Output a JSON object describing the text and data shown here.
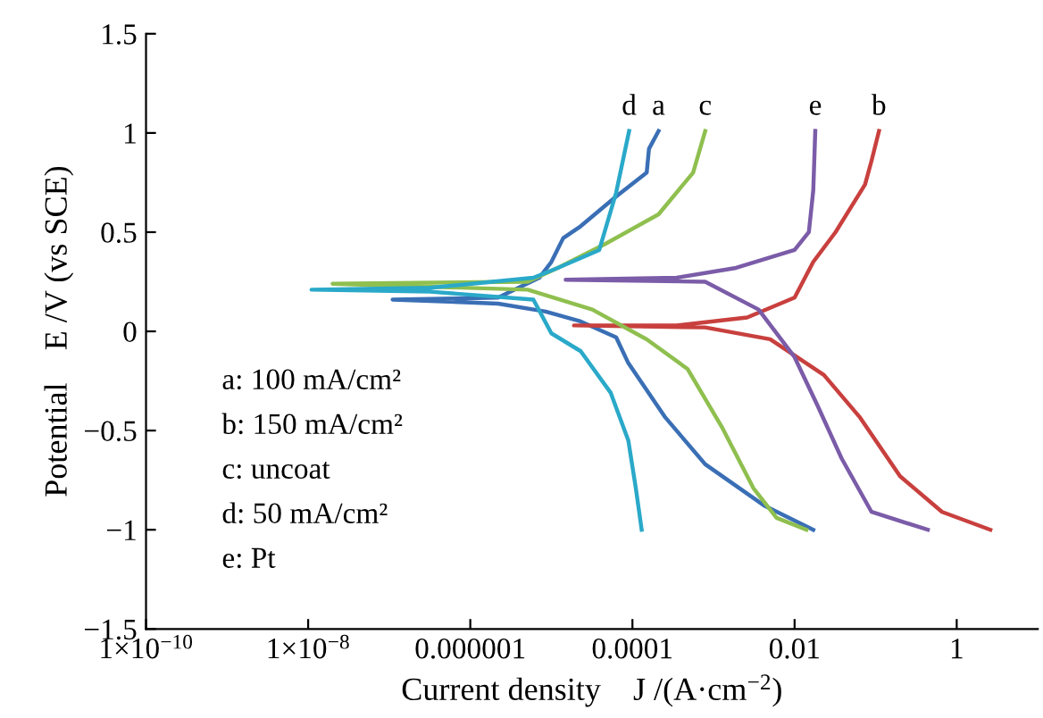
{
  "chart_data": {
    "type": "line",
    "xlabel": "Current density    J /(A·cm$^{−2}$)",
    "ylabel": "Potential    E /V (vs SCE)",
    "log": "x",
    "xlim": [
      1e-10,
      10
    ],
    "ylim": [
      -1.5,
      1.5
    ],
    "xticks": [
      {
        "value": 1e-10,
        "label": "1×10$^{−10}$"
      },
      {
        "value": 1e-08,
        "label": "1×10$^{−8}$"
      },
      {
        "value": 1e-06,
        "label": "0.000001"
      },
      {
        "value": 0.0001,
        "label": "0.0001"
      },
      0.01,
      1
    ],
    "yticks": [
      {
        "value": -1.5,
        "label": "−1.5"
      },
      {
        "value": -1,
        "label": "−1"
      },
      {
        "value": -0.5,
        "label": "−0.5"
      },
      0,
      0.5,
      1,
      1.5
    ],
    "grid": false,
    "legend": false,
    "line_style": "solid",
    "annotations": [
      "a: 100 mA/cm²",
      "b: 150 mA/cm²",
      "c: uncoat",
      "d: 50 mA/cm²",
      "e: Pt"
    ],
    "series": [
      {
        "name": "a",
        "color": "#3a6fb5",
        "x": [
          0.017,
          0.0043,
          0.00079,
          0.00025,
          8.9e-05,
          6.3e-05,
          2.3e-05,
          8.5e-06,
          2.2e-06,
          1.1e-07,
          2.2e-06,
          7.1e-06,
          1e-05,
          1.4e-05,
          2.3e-05,
          6.3e-05,
          0.00015,
          0.00016,
          0.00021
        ],
        "values": [
          -1.0,
          -0.88,
          -0.67,
          -0.43,
          -0.16,
          -0.03,
          0.05,
          0.1,
          0.14,
          0.16,
          0.17,
          0.27,
          0.35,
          0.47,
          0.53,
          0.68,
          0.8,
          0.92,
          1.01
        ]
      },
      {
        "name": "b",
        "color": "#c8403e",
        "x": [
          2.6,
          0.66,
          0.2,
          0.063,
          0.023,
          0.005,
          0.00079,
          1.9e-05,
          0.00035,
          0.0026,
          0.01,
          0.017,
          0.032,
          0.074,
          0.089,
          0.11
        ],
        "values": [
          -1.0,
          -0.91,
          -0.73,
          -0.43,
          -0.22,
          -0.04,
          0.02,
          0.03,
          0.03,
          0.07,
          0.17,
          0.35,
          0.5,
          0.74,
          0.86,
          1.01
        ]
      },
      {
        "name": "c",
        "color": "#8fbf4f",
        "x": [
          0.014,
          0.006,
          0.0031,
          0.0013,
          0.00048,
          0.00015,
          3.2e-05,
          5.1e-06,
          2e-08,
          5.1e-06,
          1.2e-05,
          4.6e-05,
          0.00021,
          0.00056,
          0.00079
        ],
        "values": [
          -1.0,
          -0.94,
          -0.79,
          -0.49,
          -0.19,
          -0.04,
          0.11,
          0.21,
          0.24,
          0.25,
          0.32,
          0.44,
          0.59,
          0.8,
          1.01
        ]
      },
      {
        "name": "d",
        "color": "#2aa9c9",
        "x": [
          0.00013,
          0.00011,
          8.9e-05,
          5.4e-05,
          2.3e-05,
          1e-05,
          6e-06,
          3.2e-07,
          1.1e-08,
          3.2e-07,
          6e-06,
          1.2e-05,
          3.9e-05,
          6.3e-05,
          9.1e-05
        ],
        "values": [
          -1.0,
          -0.79,
          -0.55,
          -0.31,
          -0.1,
          -0.01,
          0.16,
          0.2,
          0.21,
          0.22,
          0.27,
          0.32,
          0.41,
          0.7,
          1.01
        ]
      },
      {
        "name": "e",
        "color": "#7b5ca8",
        "x": [
          0.44,
          0.089,
          0.038,
          0.019,
          0.01,
          0.0036,
          0.00079,
          1.5e-05,
          0.00035,
          0.0019,
          0.01,
          0.015,
          0.017,
          0.018
        ],
        "values": [
          -1.0,
          -0.91,
          -0.64,
          -0.37,
          -0.13,
          0.11,
          0.25,
          0.26,
          0.27,
          0.32,
          0.41,
          0.5,
          0.71,
          1.01
        ]
      }
    ]
  }
}
